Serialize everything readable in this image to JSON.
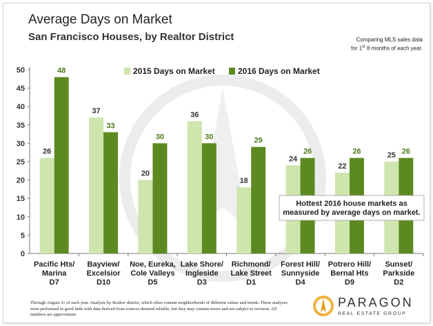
{
  "title": "Average Days on Market",
  "subtitle": "San Francisco Houses, by Realtor District",
  "topnote_line1": "Comparing MLS sales data",
  "topnote_line2_pre": "for 1",
  "topnote_sup": "st",
  "topnote_line2_post": " 8 months of each year.",
  "footnote": "Through August 31 of each year. Analysis by Realtor district, which often contain neighborhoods of different values and trends. These analyses were performed in good faith with data derived from sources deemed reliable, but they may contain errors and are subject to revision. All numbers are approximate.",
  "logo": {
    "name": "PARAGON",
    "tagline": "REAL ESTATE GROUP"
  },
  "colors": {
    "series2015": "#cfe5ae",
    "series2016": "#5c8a21",
    "label2015": "#333333",
    "label2016": "#4a7a1b"
  },
  "chart_data": {
    "type": "bar",
    "categories": [
      [
        "Pacific Hts/",
        "Marina",
        "D7"
      ],
      [
        "Bayview/",
        "Excelsior",
        "D10"
      ],
      [
        "Noe, Eureka,",
        "Cole Valleys",
        "D5"
      ],
      [
        "Lake Shore/",
        "Ingleside",
        "D3"
      ],
      [
        "Richmond/",
        "Lake Street",
        "D1"
      ],
      [
        "Forest Hill/",
        "Sunnyside",
        "D4"
      ],
      [
        "Potrero Hill/",
        "Bernal Hts",
        "D9"
      ],
      [
        "Sunset/",
        "Parkside",
        "D2"
      ]
    ],
    "series": [
      {
        "name": "2015 Days on Market",
        "values": [
          26,
          37,
          20,
          36,
          18,
          24,
          22,
          25
        ]
      },
      {
        "name": "2016 Days on Market",
        "values": [
          48,
          33,
          30,
          30,
          29,
          26,
          26,
          26
        ]
      }
    ],
    "yticks": [
      0,
      5,
      10,
      15,
      20,
      25,
      30,
      35,
      40,
      45,
      50
    ],
    "ylim": [
      0,
      50
    ],
    "grid": false,
    "legend": "top",
    "annotation": [
      "Hottest 2016 house markets as",
      "measured by average days on market."
    ]
  }
}
